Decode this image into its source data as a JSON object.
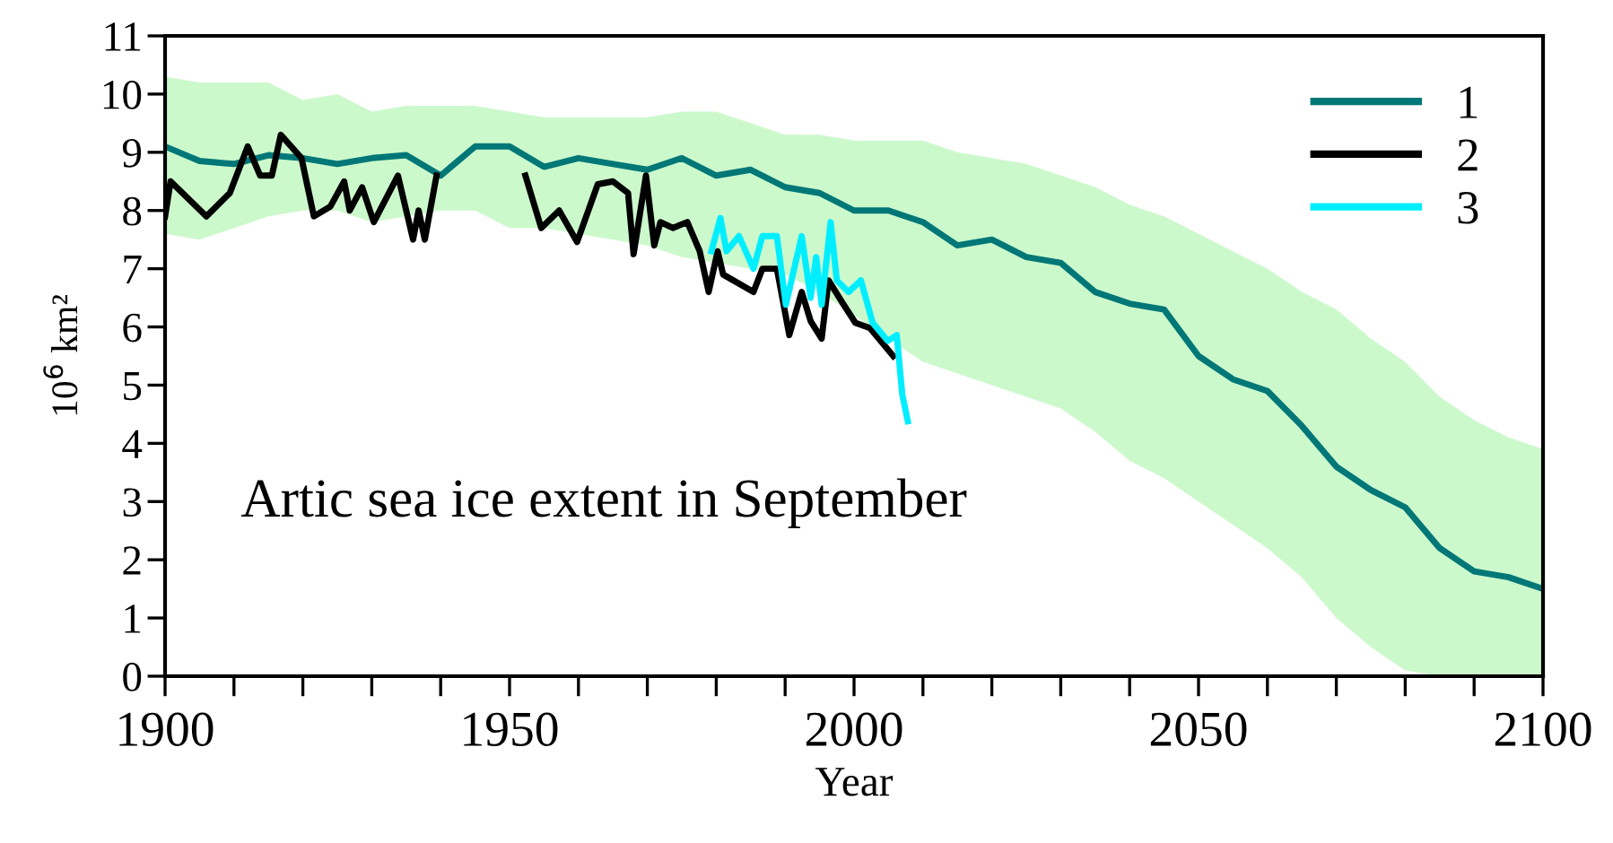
{
  "chart_data": {
    "type": "line",
    "xlabel": "Year",
    "ylabel": "10$^{6}$ km²",
    "annotations": [
      "Artic sea ice extent in September"
    ],
    "xlim": [
      1900,
      2100
    ],
    "ylim": [
      0,
      11
    ],
    "xticks": [
      1900,
      {
        "value": 1910,
        "label": null
      },
      {
        "value": 1920,
        "label": null
      },
      {
        "value": 1930,
        "label": null
      },
      {
        "value": 1940,
        "label": null
      },
      1950,
      {
        "value": 1960,
        "label": null
      },
      {
        "value": 1970,
        "label": null
      },
      {
        "value": 1980,
        "label": null
      },
      {
        "value": 1990,
        "label": null
      },
      2000,
      {
        "value": 2010,
        "label": null
      },
      {
        "value": 2020,
        "label": null
      },
      {
        "value": 2030,
        "label": null
      },
      {
        "value": 2040,
        "label": null
      },
      2050,
      {
        "value": 2060,
        "label": null
      },
      {
        "value": 2070,
        "label": null
      },
      {
        "value": 2080,
        "label": null
      },
      {
        "value": 2090,
        "label": null
      },
      2100
    ],
    "yticks": [
      0,
      1,
      2,
      3,
      4,
      5,
      6,
      7,
      8,
      9,
      10,
      11
    ],
    "grid": false,
    "legend": "top right",
    "marker": "none",
    "line_style": "solid",
    "series": [
      {
        "name": "1",
        "color": "#007777",
        "x": [
          1900,
          1905,
          1910,
          1915,
          1920,
          1925,
          1930,
          1935,
          1940,
          1945,
          1950,
          1955,
          1960,
          1965,
          1970,
          1975,
          1980,
          1985,
          1990,
          1995,
          2000,
          2005,
          2010,
          2015,
          2020,
          2025,
          2030,
          2035,
          2040,
          2045,
          2050,
          2055,
          2060,
          2065,
          2070,
          2075,
          2080,
          2085,
          2090,
          2095,
          2100
        ],
        "values": [
          9.1,
          8.85,
          8.8,
          8.95,
          8.9,
          8.8,
          8.9,
          8.95,
          8.6,
          9.1,
          9.1,
          8.75,
          8.9,
          8.8,
          8.7,
          8.9,
          8.6,
          8.7,
          8.4,
          8.3,
          8.0,
          8.0,
          7.8,
          7.4,
          7.5,
          7.2,
          7.1,
          6.6,
          6.4,
          6.3,
          5.5,
          5.1,
          4.9,
          4.3,
          3.6,
          3.2,
          2.9,
          2.2,
          1.8,
          1.7,
          1.5
        ],
        "upper": [
          10.3,
          10.2,
          10.2,
          10.2,
          9.9,
          10.0,
          9.7,
          9.8,
          9.8,
          9.8,
          9.7,
          9.6,
          9.6,
          9.6,
          9.6,
          9.7,
          9.7,
          9.5,
          9.3,
          9.3,
          9.2,
          9.2,
          9.2,
          9.0,
          8.9,
          8.8,
          8.6,
          8.4,
          8.1,
          7.9,
          7.6,
          7.3,
          7.0,
          6.6,
          6.3,
          5.8,
          5.4,
          4.8,
          4.4,
          4.1,
          3.9
        ],
        "lower": [
          7.6,
          7.5,
          7.7,
          7.9,
          8.0,
          8.0,
          7.8,
          7.9,
          8.0,
          8.0,
          7.7,
          7.7,
          7.6,
          7.5,
          7.4,
          7.2,
          7.1,
          7.0,
          6.9,
          6.6,
          6.2,
          5.8,
          5.4,
          5.2,
          5.0,
          4.8,
          4.6,
          4.2,
          3.7,
          3.4,
          3.0,
          2.6,
          2.2,
          1.7,
          1.0,
          0.5,
          0.1,
          0,
          0,
          0,
          0
        ]
      },
      {
        "name": "2",
        "color": "#000000",
        "x": [
          1900,
          1900.8,
          1906,
          1909.4,
          1912,
          1913.8,
          1915.5,
          1916.8,
          1919.8,
          1921.6,
          1924,
          1926,
          1926.8,
          1928.6,
          1930.3,
          1933.8,
          1936,
          1936.8,
          1937.7,
          1939.4,
          1945,
          1952.3,
          1954.6,
          1957.2,
          1959.8,
          1962.8,
          1965,
          1967.2,
          1968,
          1969.8,
          1971,
          1971.9,
          1973.7,
          1975.8,
          1977.6,
          1978.9,
          1980.2,
          1981,
          1985.4,
          1986.7,
          1988.8,
          1990.6,
          1992.4,
          1993.7,
          1995.3,
          1996.3,
          1998.4,
          2000.2,
          2002.3,
          2005.7
        ],
        "values": [
          7.9,
          8.5,
          7.9,
          8.3,
          9.1,
          8.6,
          8.6,
          9.3,
          8.9,
          7.9,
          8.07,
          8.5,
          8.0,
          8.4,
          7.8,
          8.6,
          7.5,
          8.0,
          7.5,
          8.6,
          null,
          8.6,
          7.7,
          8.0,
          7.46,
          8.45,
          8.5,
          8.3,
          7.25,
          8.6,
          7.4,
          7.8,
          7.7,
          7.8,
          7.3,
          6.6,
          7.3,
          6.9,
          6.6,
          7.0,
          7.0,
          5.86,
          6.6,
          6.1,
          5.8,
          6.8,
          6.4,
          6.07,
          5.98,
          5.5
        ]
      },
      {
        "name": "3",
        "color": "#00eeff",
        "x": [
          1979.3,
          1980.6,
          1981.5,
          1983.3,
          1985.4,
          1986.7,
          1988.8,
          1990.1,
          1992.4,
          1993.7,
          1994.5,
          1995.3,
          1996.6,
          1997.5,
          1999.2,
          2001,
          2002.7,
          2004.9,
          2006.2,
          2007,
          2007.8
        ],
        "values": [
          7.3,
          7.87,
          7.3,
          7.56,
          7.0,
          7.56,
          7.56,
          6.38,
          7.56,
          6.5,
          7.2,
          6.38,
          7.8,
          6.8,
          6.6,
          6.8,
          6.07,
          5.76,
          5.86,
          4.84,
          4.38
        ]
      }
    ]
  }
}
